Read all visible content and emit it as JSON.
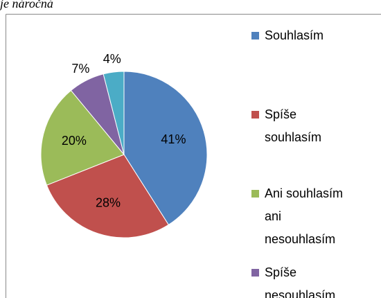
{
  "chart_data": {
    "type": "pie",
    "title": "je náročná",
    "categories": [
      "Souhlasím",
      "Spíše souhlasím",
      "Ani souhlasím ani nesouhlasím",
      "Spíše nesouhlasím",
      null
    ],
    "values": [
      41,
      28,
      20,
      7,
      4
    ],
    "value_labels": [
      "41%",
      "28%",
      "20%",
      "7%",
      "4%"
    ],
    "colors": [
      "#4f81bd",
      "#c0504d",
      "#9bbb59",
      "#8064a2",
      "#4bacc6"
    ],
    "legend": "right"
  }
}
